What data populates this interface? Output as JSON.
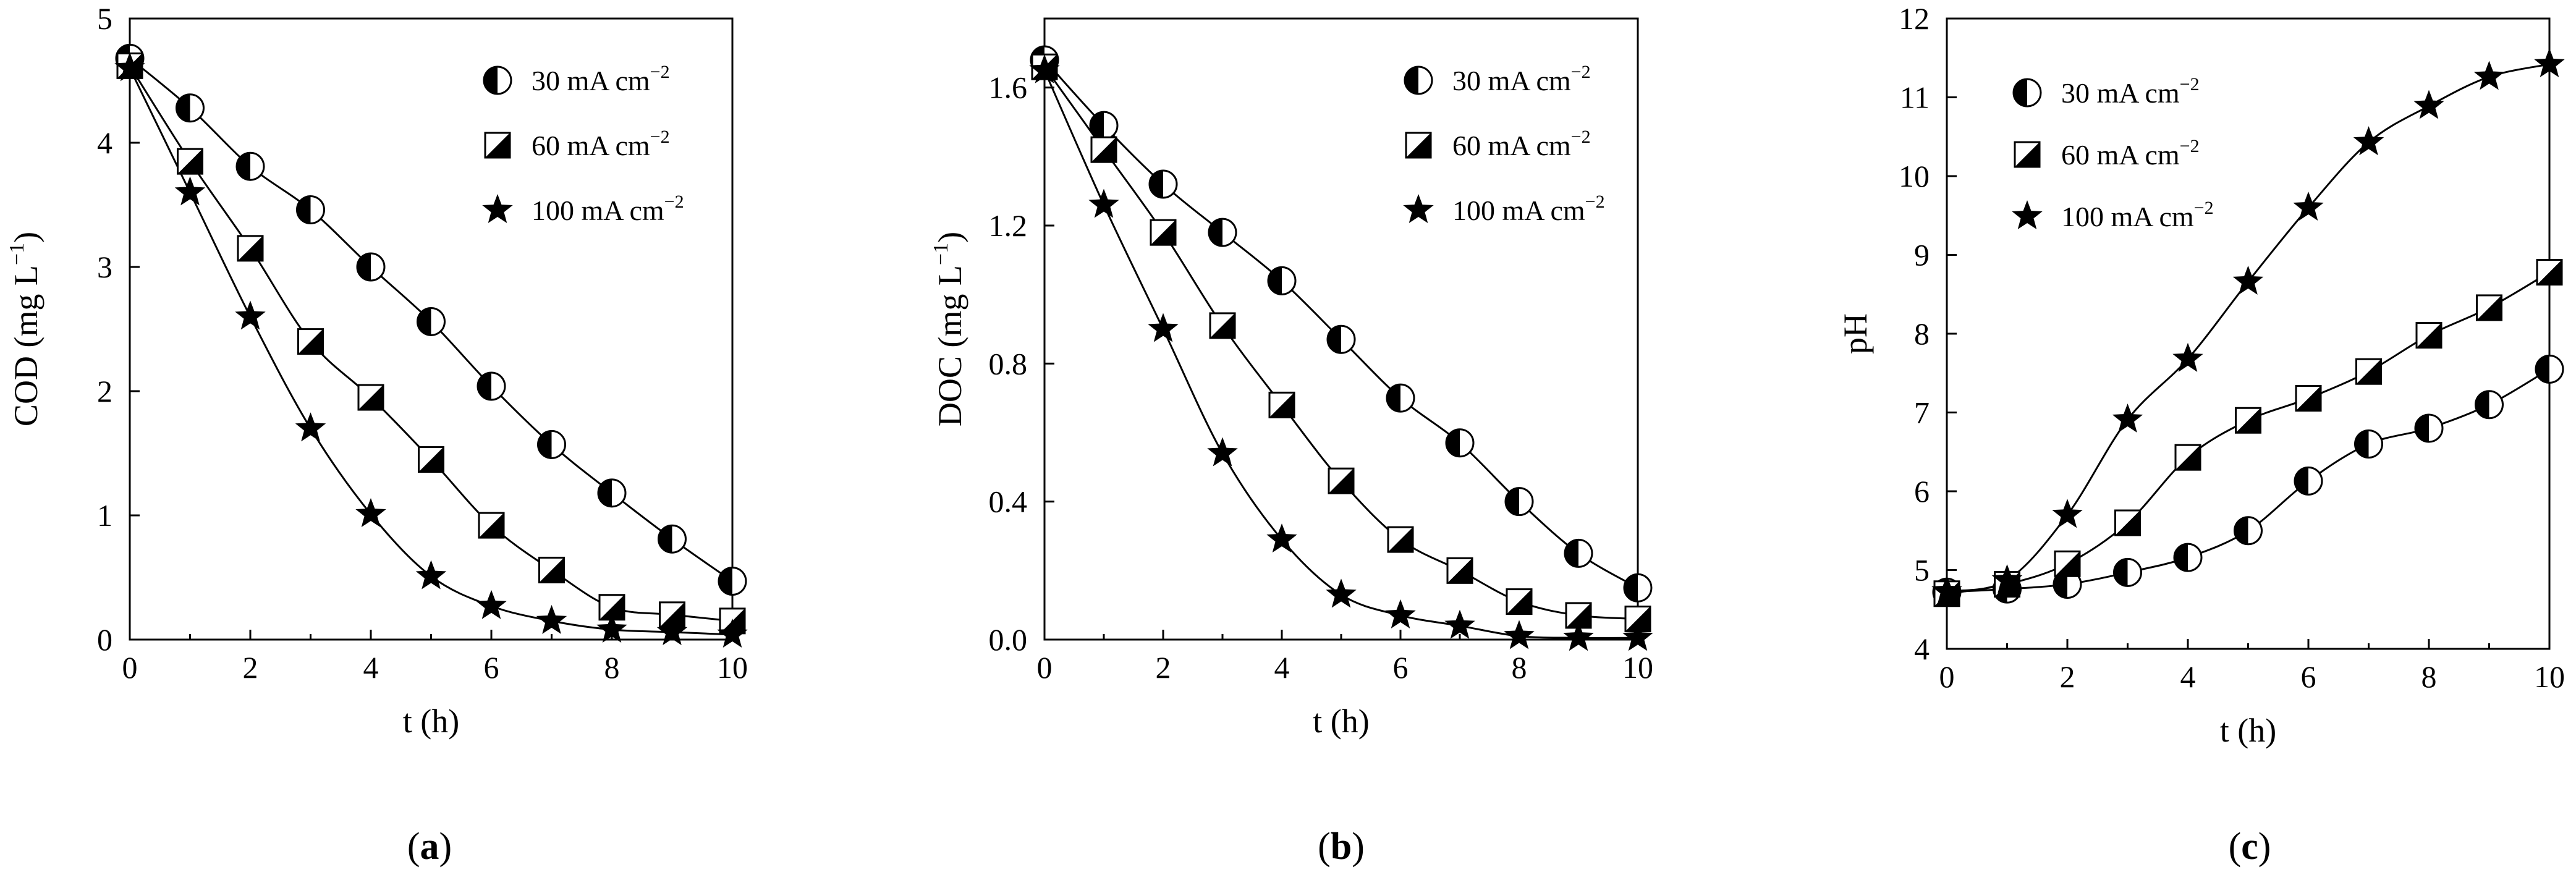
{
  "chart_data": [
    {
      "type": "line",
      "panel": "a",
      "caption": {
        "open": "(",
        "letter": "a",
        "close": ")"
      },
      "xlabel": "t (h)",
      "ylabel": {
        "base": "COD (mg L",
        "sup": "−1",
        "end": ")"
      },
      "xlim": [
        0,
        10
      ],
      "ylim": [
        0,
        5
      ],
      "xticks": [
        "0",
        "2",
        "4",
        "6",
        "8",
        "10"
      ],
      "yticks": [
        "0",
        "1",
        "2",
        "3",
        "4",
        "5"
      ],
      "legend_position": "top-right",
      "x": [
        0,
        1,
        2,
        3,
        4,
        5,
        6,
        7,
        8,
        9,
        10
      ],
      "series": [
        {
          "name": {
            "base": "30 mA cm",
            "sup": "−2"
          },
          "marker": "circle-half",
          "values": [
            4.68,
            4.28,
            3.81,
            3.46,
            3.0,
            2.56,
            2.04,
            1.57,
            1.18,
            0.81,
            0.47
          ]
        },
        {
          "name": {
            "base": "60 mA cm",
            "sup": "−2"
          },
          "marker": "square-half",
          "values": [
            4.62,
            3.85,
            3.15,
            2.4,
            1.95,
            1.45,
            0.92,
            0.56,
            0.26,
            0.2,
            0.15
          ]
        },
        {
          "name": {
            "base": "100 mA cm",
            "sup": "−2"
          },
          "marker": "star",
          "values": [
            4.6,
            3.6,
            2.6,
            1.7,
            1.01,
            0.51,
            0.27,
            0.15,
            0.08,
            0.06,
            0.04
          ]
        }
      ]
    },
    {
      "type": "line",
      "panel": "b",
      "caption": {
        "open": "(",
        "letter": "b",
        "close": ")"
      },
      "xlabel": "t (h)",
      "ylabel": {
        "base": "DOC (mg L",
        "sup": "−1",
        "end": ")"
      },
      "xlim": [
        0,
        10
      ],
      "ylim": [
        0,
        1.8
      ],
      "xticks": [
        "0",
        "2",
        "4",
        "6",
        "8",
        "10"
      ],
      "yticks": [
        "0.0",
        "0.4",
        "0.8",
        "1.2",
        "1.6"
      ],
      "legend_position": "top-right",
      "x": [
        0,
        1,
        2,
        3,
        4,
        5,
        6,
        7,
        8,
        9,
        10
      ],
      "series": [
        {
          "name": {
            "base": "30 mA cm",
            "sup": "−2"
          },
          "marker": "circle-half",
          "values": [
            1.68,
            1.49,
            1.32,
            1.18,
            1.04,
            0.87,
            0.7,
            0.57,
            0.4,
            0.25,
            0.15
          ]
        },
        {
          "name": {
            "base": "60 mA cm",
            "sup": "−2"
          },
          "marker": "square-half",
          "values": [
            1.66,
            1.42,
            1.18,
            0.91,
            0.68,
            0.46,
            0.29,
            0.2,
            0.11,
            0.07,
            0.06
          ]
        },
        {
          "name": {
            "base": "100 mA cm",
            "sup": "−2"
          },
          "marker": "star",
          "values": [
            1.65,
            1.26,
            0.9,
            0.54,
            0.29,
            0.13,
            0.07,
            0.04,
            0.01,
            0.005,
            0.005
          ]
        }
      ]
    },
    {
      "type": "line",
      "panel": "c",
      "caption": {
        "open": "(",
        "letter": "c",
        "close": ")"
      },
      "xlabel": "t (h)",
      "ylabel": {
        "base": "pH",
        "sup": "",
        "end": ""
      },
      "xlim": [
        0,
        10
      ],
      "ylim": [
        4,
        12
      ],
      "xticks": [
        "0",
        "2",
        "4",
        "6",
        "8",
        "10"
      ],
      "yticks": [
        "4",
        "5",
        "6",
        "7",
        "8",
        "9",
        "10",
        "11",
        "12"
      ],
      "legend_position": "top-left",
      "x": [
        0,
        1,
        2,
        3,
        4,
        5,
        6,
        7,
        8,
        9,
        10
      ],
      "series": [
        {
          "name": {
            "base": "30 mA cm",
            "sup": "−2"
          },
          "marker": "circle-half",
          "values": [
            4.72,
            4.76,
            4.82,
            4.97,
            5.16,
            5.5,
            6.13,
            6.6,
            6.8,
            7.1,
            7.55
          ]
        },
        {
          "name": {
            "base": "60 mA cm",
            "sup": "−2"
          },
          "marker": "square-half",
          "values": [
            4.7,
            4.82,
            5.08,
            5.6,
            6.43,
            6.9,
            7.18,
            7.52,
            7.98,
            8.33,
            8.78
          ]
        },
        {
          "name": {
            "base": "100 mA cm",
            "sup": "−2"
          },
          "marker": "star",
          "values": [
            4.73,
            4.87,
            5.7,
            6.91,
            7.68,
            8.66,
            9.6,
            10.43,
            10.89,
            11.26,
            11.42
          ]
        }
      ]
    }
  ]
}
